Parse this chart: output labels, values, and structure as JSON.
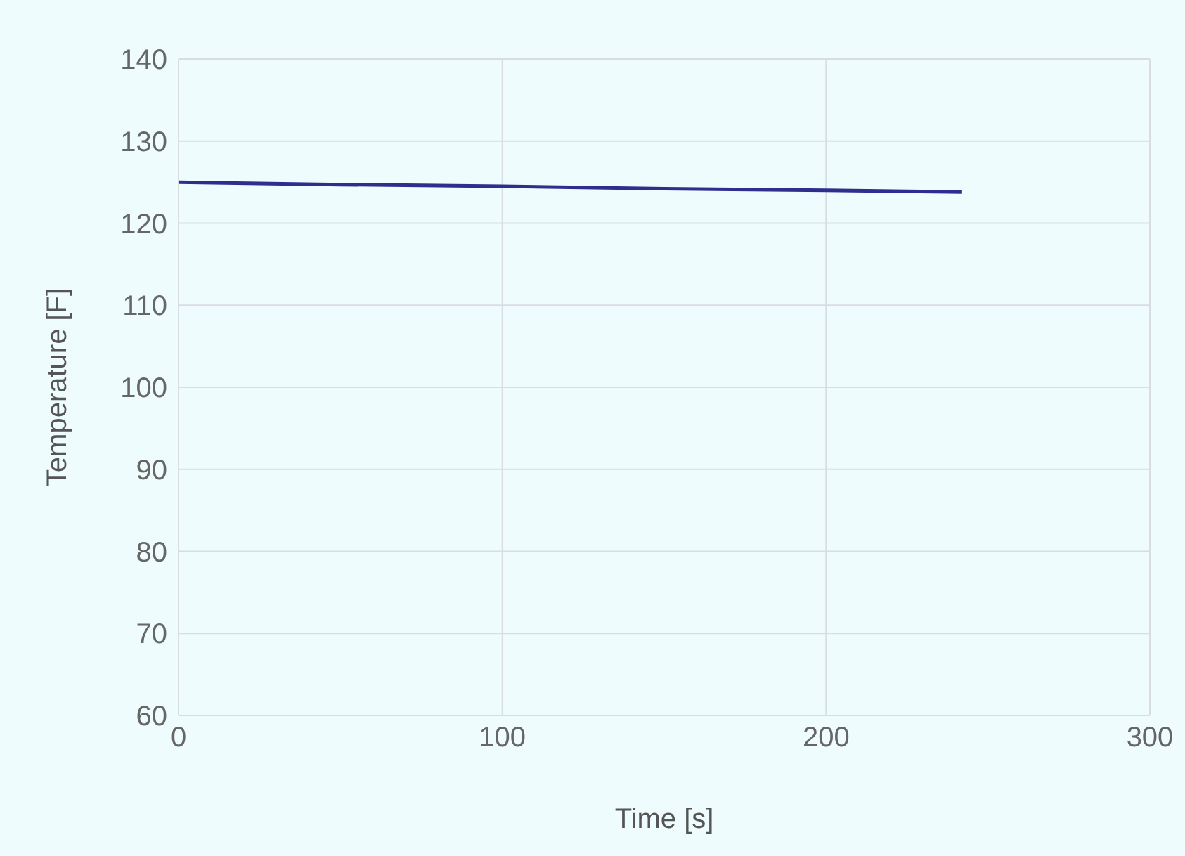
{
  "chart_data": {
    "type": "line",
    "xlabel": "Time [s]",
    "ylabel": "Temperature [F]",
    "x": [
      0,
      50,
      100,
      150,
      200,
      242
    ],
    "series": [
      {
        "color": "#2e2e8f",
        "values": [
          125,
          124.7,
          124.5,
          124.2,
          124,
          123.8
        ]
      }
    ],
    "xlim": [
      0,
      300
    ],
    "xticks": [
      0,
      100,
      200,
      300
    ],
    "ylim": [
      60,
      140
    ],
    "yticks": [
      60,
      70,
      80,
      90,
      100,
      110,
      120,
      130,
      140
    ],
    "grid": true,
    "legend": false,
    "marker": "none",
    "line_style": "solid"
  }
}
